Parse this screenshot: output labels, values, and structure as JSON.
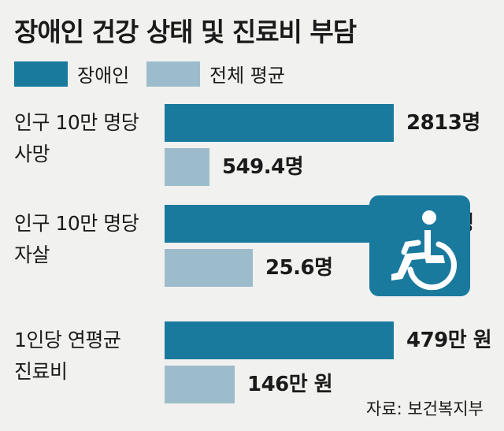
{
  "title": "장애인 건강 상태 및 진료비 부담",
  "legend": [
    {
      "label": "장애인",
      "color": "#1a7a9e"
    },
    {
      "label": "전체 평균",
      "color": "#9dbccb"
    }
  ],
  "source": "자료: 보건복지부",
  "icon": "wheelchair-icon",
  "colors": {
    "primary": "#1a7a9e",
    "secondary": "#9dbccb",
    "background": "#f1f1ef"
  },
  "chart_data": {
    "type": "bar",
    "orientation": "horizontal",
    "title": "장애인 건강 상태 및 진료비 부담",
    "independent_scales": true,
    "groups": [
      {
        "label_line1": "인구 10만 명당",
        "label_line2": "사망",
        "disabled": 2813,
        "average": 549.4,
        "disabled_label": "2813명",
        "average_label": "549.4명"
      },
      {
        "label_line1": "인구 10만 명당",
        "label_line2": "자살",
        "disabled": 66.8,
        "average": 25.6,
        "disabled_label": "66.8명",
        "average_label": "25.6명"
      },
      {
        "label_line1": "1인당 연평균",
        "label_line2": "진료비",
        "disabled": 479,
        "average": 146,
        "disabled_label": "479만 원",
        "average_label": "146만 원"
      }
    ],
    "series": [
      {
        "name": "장애인",
        "key": "disabled",
        "color": "#1a7a9e"
      },
      {
        "name": "전체 평균",
        "key": "average",
        "color": "#9dbccb"
      }
    ]
  }
}
